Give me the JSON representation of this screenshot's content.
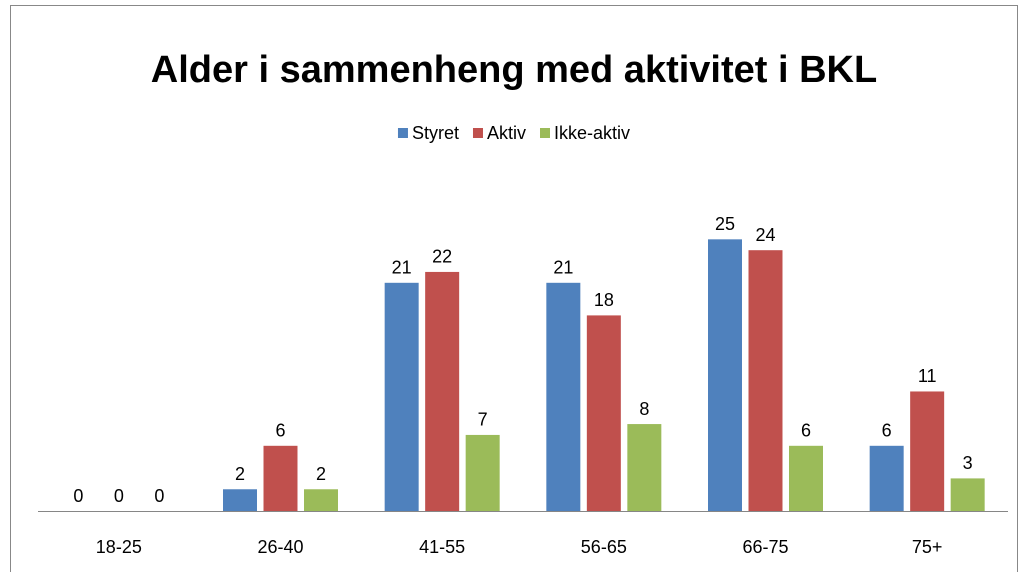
{
  "chart_data": {
    "type": "bar",
    "title": "Alder i sammenheng med aktivitet i BKL",
    "categories": [
      "18-25",
      "26-40",
      "41-55",
      "56-65",
      "66-75",
      "75+"
    ],
    "series": [
      {
        "name": "Styret",
        "color": "#4f81bd",
        "values": [
          0,
          2,
          21,
          21,
          25,
          6
        ]
      },
      {
        "name": "Aktiv",
        "color": "#c0504d",
        "values": [
          0,
          6,
          22,
          18,
          24,
          11
        ]
      },
      {
        "name": "Ikke-aktiv",
        "color": "#9bbb59",
        "values": [
          0,
          2,
          7,
          8,
          6,
          3
        ]
      }
    ],
    "ylim": [
      0,
      30
    ],
    "legend": "top"
  }
}
